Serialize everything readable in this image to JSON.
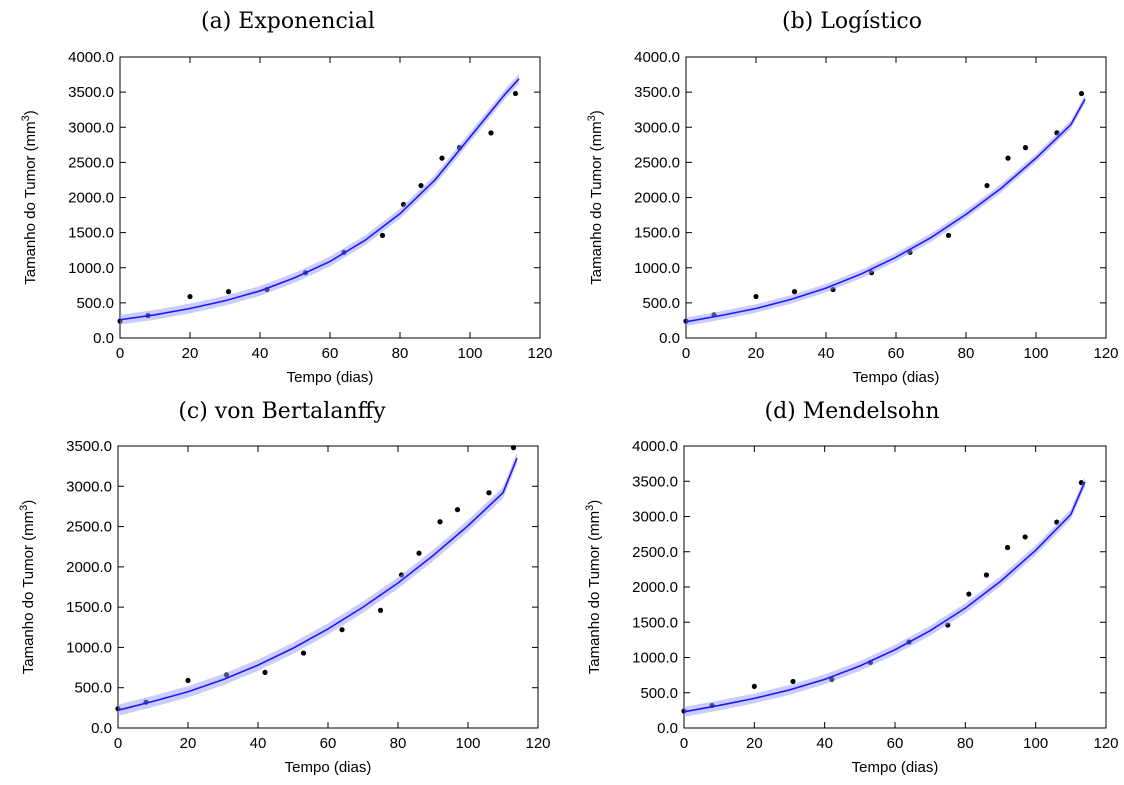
{
  "chart_data": [
    {
      "type": "line",
      "title": "(a) Exponencial",
      "xlabel": "Tempo (dias)",
      "ylabel": "Tamanho do Tumor (mm",
      "ylabel_sup": "3",
      "ylabel_end": ")",
      "xlim": [
        0,
        120
      ],
      "ylim": [
        0,
        4000
      ],
      "x_ticks": [
        "0",
        "20",
        "40",
        "60",
        "80",
        "100",
        "120"
      ],
      "y_ticks": [
        "0.0",
        "500.0",
        "1000.0",
        "1500.0",
        "2000.0",
        "2500.0",
        "3000.0",
        "3500.0",
        "4000.0"
      ],
      "grid": false,
      "series": [
        {
          "kind": "scatter",
          "x": [
            0,
            8,
            20,
            31,
            42,
            53,
            64,
            75,
            81,
            86,
            92,
            97,
            106,
            113
          ],
          "y": [
            240,
            320,
            590,
            660,
            690,
            930,
            1220,
            1460,
            1900,
            2170,
            2560,
            2710,
            2920,
            3480
          ]
        },
        {
          "kind": "line",
          "color": "#1a1aff",
          "band_color": "#9999ff",
          "x": [
            0,
            10,
            20,
            30,
            40,
            50,
            60,
            70,
            80,
            90,
            100,
            110,
            114
          ],
          "y": [
            260,
            330,
            420,
            530,
            670,
            860,
            1090,
            1390,
            1770,
            2250,
            2860,
            3470,
            3690
          ],
          "band_width": 70
        }
      ]
    },
    {
      "type": "line",
      "title": "(b) Logístico",
      "xlabel": "Tempo (dias)",
      "ylabel": "Tamanho do Tumor (mm",
      "ylabel_sup": "3",
      "ylabel_end": ")",
      "xlim": [
        0,
        120
      ],
      "ylim": [
        0,
        4000
      ],
      "x_ticks": [
        "0",
        "20",
        "40",
        "60",
        "80",
        "100",
        "120"
      ],
      "y_ticks": [
        "0.0",
        "500.0",
        "1000.0",
        "1500.0",
        "2000.0",
        "2500.0",
        "3000.0",
        "3500.0",
        "4000.0"
      ],
      "grid": false,
      "series": [
        {
          "kind": "scatter",
          "x": [
            0,
            8,
            20,
            31,
            42,
            53,
            64,
            75,
            86,
            92,
            97,
            106,
            113
          ],
          "y": [
            240,
            330,
            590,
            660,
            690,
            930,
            1220,
            1460,
            2170,
            2560,
            2710,
            2920,
            3480
          ]
        },
        {
          "kind": "line",
          "color": "#1a1aff",
          "band_color": "#9999ff",
          "x": [
            0,
            10,
            20,
            30,
            40,
            50,
            60,
            70,
            80,
            90,
            100,
            110,
            114
          ],
          "y": [
            230,
            320,
            420,
            550,
            710,
            910,
            1150,
            1430,
            1760,
            2130,
            2560,
            3040,
            3400
          ],
          "band_width": 60
        }
      ]
    },
    {
      "type": "line",
      "title": "(c) von Bertalanffy",
      "xlabel": "Tempo (dias)",
      "ylabel": "Tamanho do Tumor (mm",
      "ylabel_sup": "3",
      "ylabel_end": ")",
      "xlim": [
        0,
        120
      ],
      "ylim": [
        0,
        3500
      ],
      "x_ticks": [
        "0",
        "20",
        "40",
        "60",
        "80",
        "100",
        "120"
      ],
      "y_ticks": [
        "0.0",
        "500.0",
        "1000.0",
        "1500.0",
        "2000.0",
        "2500.0",
        "3000.0",
        "3500.0"
      ],
      "grid": false,
      "series": [
        {
          "kind": "scatter",
          "x": [
            0,
            8,
            20,
            31,
            42,
            53,
            64,
            75,
            81,
            86,
            92,
            97,
            106,
            113
          ],
          "y": [
            240,
            320,
            590,
            660,
            690,
            930,
            1220,
            1460,
            1900,
            2170,
            2560,
            2710,
            2920,
            3480
          ]
        },
        {
          "kind": "line",
          "color": "#1a1aff",
          "band_color": "#9999ff",
          "x": [
            0,
            10,
            20,
            30,
            40,
            50,
            60,
            70,
            80,
            90,
            100,
            110,
            114
          ],
          "y": [
            220,
            330,
            450,
            600,
            780,
            990,
            1230,
            1500,
            1800,
            2140,
            2510,
            2920,
            3350
          ],
          "band_width": 70
        }
      ]
    },
    {
      "type": "line",
      "title": "(d) Mendelsohn",
      "xlabel": "Tempo (dias)",
      "ylabel": "Tamanho do Tumor (mm",
      "ylabel_sup": "3",
      "ylabel_end": ")",
      "xlim": [
        0,
        120
      ],
      "ylim": [
        0,
        4000
      ],
      "x_ticks": [
        "0",
        "20",
        "40",
        "60",
        "80",
        "100",
        "120"
      ],
      "y_ticks": [
        "0.0",
        "500.0",
        "1000.0",
        "1500.0",
        "2000.0",
        "2500.0",
        "3000.0",
        "3500.0",
        "4000.0"
      ],
      "grid": false,
      "series": [
        {
          "kind": "scatter",
          "x": [
            0,
            8,
            20,
            31,
            42,
            53,
            64,
            75,
            81,
            86,
            92,
            97,
            106,
            113
          ],
          "y": [
            240,
            320,
            590,
            660,
            690,
            930,
            1220,
            1460,
            1900,
            2170,
            2560,
            2710,
            2920,
            3480
          ]
        },
        {
          "kind": "line",
          "color": "#1a1aff",
          "band_color": "#9999ff",
          "x": [
            0,
            10,
            20,
            30,
            40,
            50,
            60,
            70,
            80,
            90,
            100,
            110,
            114
          ],
          "y": [
            230,
            320,
            420,
            540,
            690,
            880,
            1110,
            1380,
            1700,
            2080,
            2520,
            3030,
            3490
          ],
          "band_width": 70
        }
      ]
    }
  ]
}
